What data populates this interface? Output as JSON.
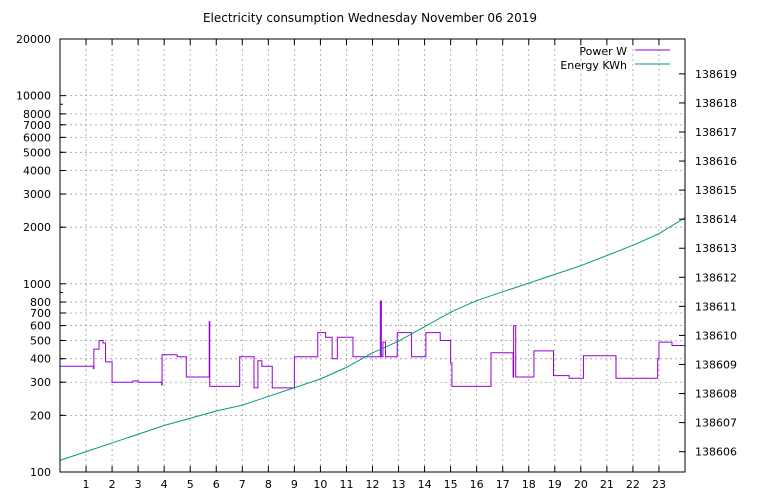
{
  "chart_data": {
    "type": "line",
    "title": "Electricity consumption Wednesday November 06 2019",
    "xlabel": "",
    "ylabel": "",
    "x_ticks": [
      "1",
      "2",
      "3",
      "4",
      "5",
      "6",
      "7",
      "8",
      "9",
      "10",
      "11",
      "12",
      "13",
      "14",
      "15",
      "16",
      "17",
      "18",
      "19",
      "20",
      "21",
      "22",
      "23"
    ],
    "xlim": [
      0,
      24
    ],
    "y_left": {
      "scale": "log",
      "lim": [
        100,
        20000
      ],
      "ticks": [
        {
          "value": 100,
          "label": "100"
        },
        {
          "value": 200,
          "label": "200"
        },
        {
          "value": 300,
          "label": "300"
        },
        {
          "value": 400,
          "label": "400"
        },
        {
          "value": 500,
          "label": "500"
        },
        {
          "value": 600,
          "label": "600"
        },
        {
          "value": 700,
          "label": "700"
        },
        {
          "value": 800,
          "label": "800"
        },
        {
          "value": 1000,
          "label": "1000"
        },
        {
          "value": 2000,
          "label": "2000"
        },
        {
          "value": 3000,
          "label": "3000"
        },
        {
          "value": 4000,
          "label": "4000"
        },
        {
          "value": 5000,
          "label": "5000"
        },
        {
          "value": 6000,
          "label": "6000"
        },
        {
          "value": 7000,
          "label": "7000"
        },
        {
          "value": 8000,
          "label": "8000"
        },
        {
          "value": 10000,
          "label": "10000"
        },
        {
          "value": 20000,
          "label": "20000"
        }
      ]
    },
    "y_right": {
      "scale": "linear",
      "lim": [
        138605.3,
        138620.2
      ],
      "ticks": [
        "138606",
        "138607",
        "138608",
        "138609",
        "138610",
        "138611",
        "138612",
        "138613",
        "138614",
        "138615",
        "138616",
        "138617",
        "138618",
        "138619"
      ]
    },
    "grid": true,
    "legend_position": "top-right",
    "series": [
      {
        "name": "Power W",
        "axis": "left",
        "color": "#9400d3",
        "style": "step",
        "x": [
          0,
          1.28,
          1.3,
          1.5,
          1.65,
          1.75,
          2.0,
          2.8,
          3.0,
          3.9,
          3.92,
          4.5,
          4.85,
          5.0,
          5.73,
          5.75,
          5.9,
          6.9,
          7.45,
          7.6,
          7.75,
          8.15,
          8.2,
          9.0,
          9.9,
          10.2,
          10.45,
          10.65,
          11.25,
          12.2,
          12.3,
          12.34,
          12.4,
          12.5,
          12.95,
          13.5,
          14.05,
          14.6,
          15.0,
          15.05,
          16.05,
          16.55,
          17.4,
          17.42,
          17.5,
          18.2,
          18.95,
          19.55,
          20.1,
          21.35,
          22.95,
          23.0,
          23.5,
          24.0
        ],
        "y": [
          365,
          355,
          450,
          500,
          485,
          385,
          300,
          305,
          300,
          290,
          420,
          410,
          320,
          320,
          630,
          285,
          285,
          410,
          280,
          390,
          365,
          280,
          280,
          410,
          550,
          520,
          400,
          520,
          410,
          410,
          810,
          410,
          490,
          410,
          550,
          410,
          550,
          500,
          380,
          285,
          285,
          430,
          320,
          600,
          320,
          440,
          325,
          315,
          415,
          315,
          400,
          490,
          470,
          365
        ]
      },
      {
        "name": "Energy KWh",
        "axis": "right",
        "color": "#009e73",
        "style": "line",
        "x": [
          0,
          1,
          2,
          3,
          4,
          5,
          6,
          7,
          8,
          9,
          10,
          11,
          12,
          13,
          14,
          15,
          16,
          17,
          18,
          19,
          20,
          21,
          22,
          23,
          24
        ],
        "y": [
          138605.7,
          138606.0,
          138606.3,
          138606.6,
          138606.9,
          138607.15,
          138607.4,
          138607.6,
          138607.9,
          138608.2,
          138608.5,
          138608.9,
          138609.4,
          138609.8,
          138610.3,
          138610.8,
          138611.2,
          138611.5,
          138611.8,
          138612.1,
          138612.4,
          138612.75,
          138613.1,
          138613.5,
          138614.05
        ]
      }
    ]
  }
}
